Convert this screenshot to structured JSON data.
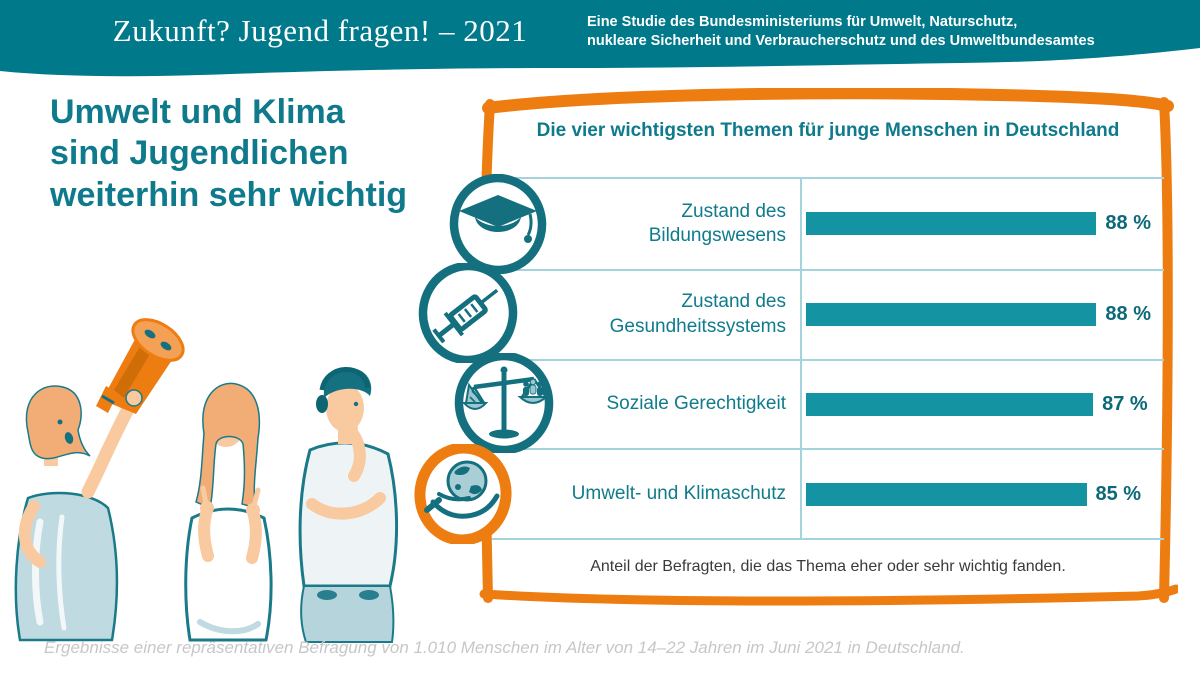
{
  "palette": {
    "header_teal": "#00798a",
    "text_teal": "#0e7a8b",
    "bar_teal": "#1493a2",
    "divider_teal": "#a3d3db",
    "orange": "#ee7d11",
    "value_teal": "#0c6979",
    "note_gray": "#3a3a39",
    "footnote_gray": "#c7c7c7"
  },
  "header": {
    "title": "Zukunft? Jugend fragen! – 2021",
    "subtitle_lines": [
      "Eine Studie des Bundesministeriums für Umwelt, Naturschutz,",
      "nukleare Sicherheit und Verbraucherschutz und des Umweltbundesamtes"
    ]
  },
  "headline": "Umwelt und Klima sind Jugendlichen weiterhin sehr wichtig",
  "chart_data": {
    "type": "bar",
    "orientation": "horizontal",
    "title": "Die vier wichtigsten Themen für junge Menschen in Deutschland",
    "categories": [
      "Zustand des Bildungswesens",
      "Zustand des Gesundheitssystems",
      "Soziale Gerechtigkeit",
      "Umwelt- und Klimaschutz"
    ],
    "label_lines": [
      [
        "Zustand des",
        "Bildungswesens"
      ],
      [
        "Zustand des",
        "Gesundheitssystems"
      ],
      [
        "Soziale Gerechtigkeit"
      ],
      [
        "Umwelt- und Klimaschutz"
      ]
    ],
    "values": [
      88,
      88,
      87,
      85
    ],
    "value_labels": [
      "88 %",
      "88 %",
      "87 %",
      "85 %"
    ],
    "icons": [
      "graduation-cap",
      "syringe",
      "scales-of-justice",
      "hand-holding-globe"
    ],
    "xlim": [
      0,
      100
    ],
    "unit": "%",
    "grid": false,
    "legend": false,
    "note": "Anteil der Befragten, die das Thema eher oder sehr wichtig fanden."
  },
  "footnote": "Ergebnisse einer repräsentativen Befragung von 1.010 Menschen im Alter von 14–22 Jahren im Juni 2021 in Deutschland."
}
